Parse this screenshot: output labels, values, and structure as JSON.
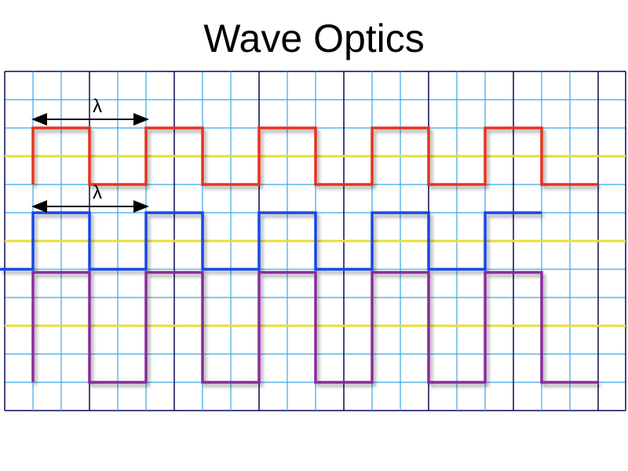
{
  "title": "Wave Optics",
  "labels": [
    "λ",
    "λ"
  ]
}
